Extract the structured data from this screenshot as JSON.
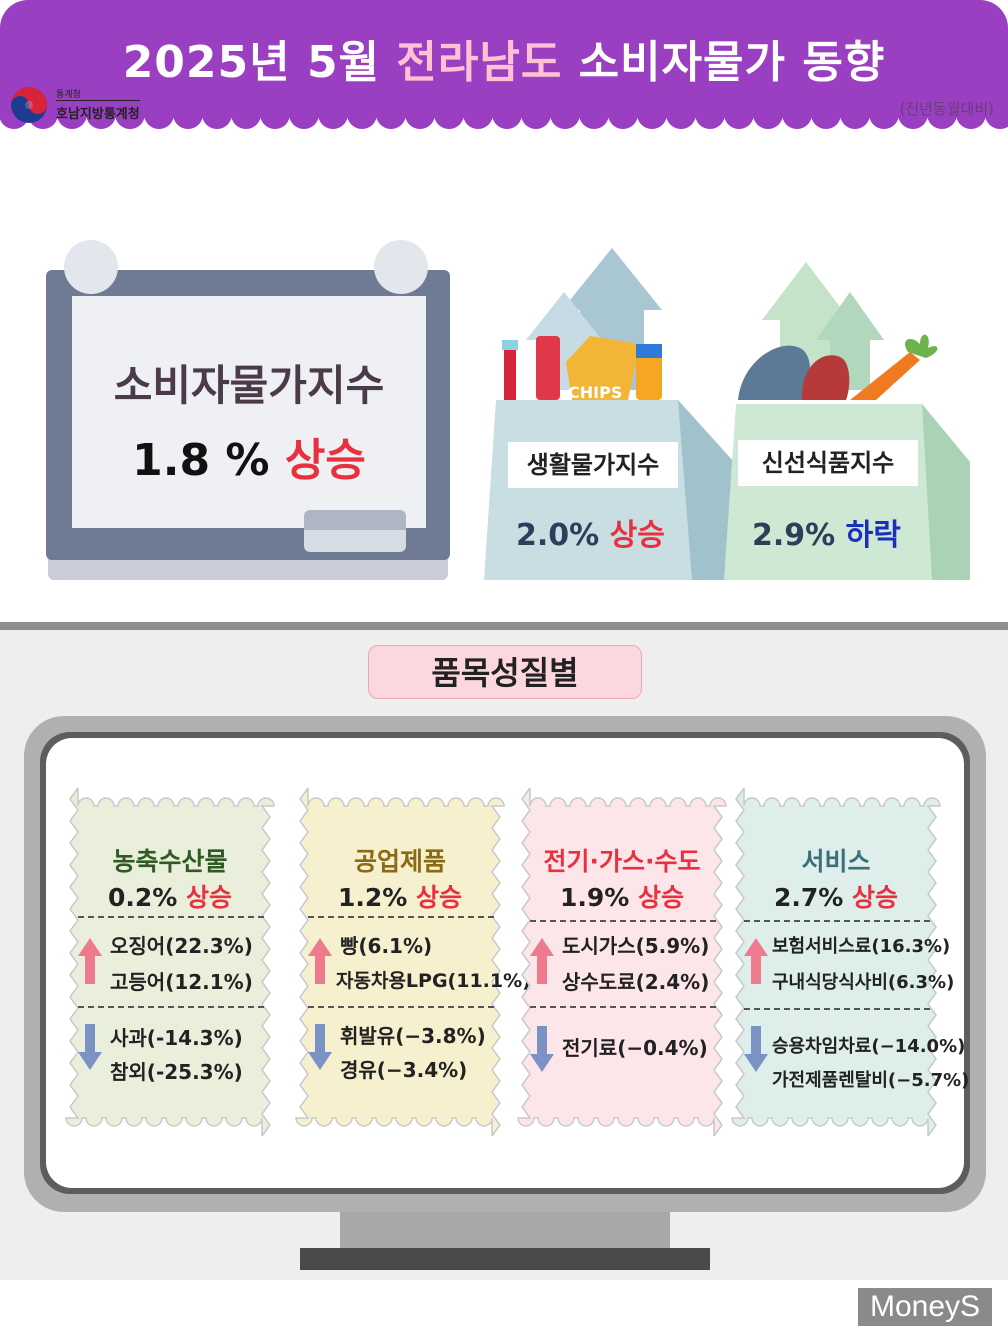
{
  "header": {
    "title_part1": "2025년 5월 ",
    "title_highlight": "전라남도",
    "title_part2": " 소비자물가 동향",
    "note": "(전년동월대비)",
    "logo_small": "통계청",
    "logo_name": "호남지방통계청",
    "colors": {
      "background": "#9b3fc2",
      "highlight": "#ffc2d2"
    }
  },
  "cpi": {
    "title": "소비자물가지수",
    "value": "1.8 % ",
    "direction": "상승"
  },
  "living_index": {
    "label": "생활물가지수",
    "value": "2.0% ",
    "direction": "상승",
    "chips_text": "CHIPS"
  },
  "fresh_food_index": {
    "label": "신선식품지수",
    "value": "2.9% ",
    "direction": "하락"
  },
  "section": {
    "title": "품목성질별"
  },
  "categories": [
    {
      "name": "농축수산물",
      "value": "0.2% ",
      "direction": "상승",
      "up_items": [
        "오징어(22.3%)",
        "고등어(12.1%)"
      ],
      "down_items": [
        "사과(-14.3%)",
        "참외(-25.3%)"
      ],
      "color": "#eaefdc",
      "name_color": "#2f5a24"
    },
    {
      "name": "공업제품",
      "value": "1.2% ",
      "direction": "상승",
      "up_items": [
        "빵(6.1%)",
        "자동차용LPG(11.1%)"
      ],
      "down_items": [
        "휘발유(−3.8%)",
        "경유(−3.4%)"
      ],
      "color": "#f7f0cf",
      "name_color": "#8a6a14"
    },
    {
      "name": "전기·가스·수도",
      "value": "1.9% ",
      "direction": "상승",
      "up_items": [
        "도시가스(5.9%)",
        "상수도료(2.4%)"
      ],
      "down_items": [
        "전기료(−0.4%)"
      ],
      "color": "#fde6ea",
      "name_color": "#e8303e"
    },
    {
      "name": "서비스",
      "value": "2.7% ",
      "direction": "상승",
      "up_items": [
        "보험서비스료(16.3%)",
        "구내식당식사비(6.3%)"
      ],
      "down_items": [
        "승용차임차료(−14.0%)",
        "가전제품렌탈비(−5.7%)"
      ],
      "color": "#ddeeeb",
      "name_color": "#3d6f78"
    }
  ],
  "watermark": "MoneyS",
  "icons": [
    "arrow-up-icon",
    "arrow-down-icon",
    "bag-icon",
    "chalkboard-icon"
  ]
}
